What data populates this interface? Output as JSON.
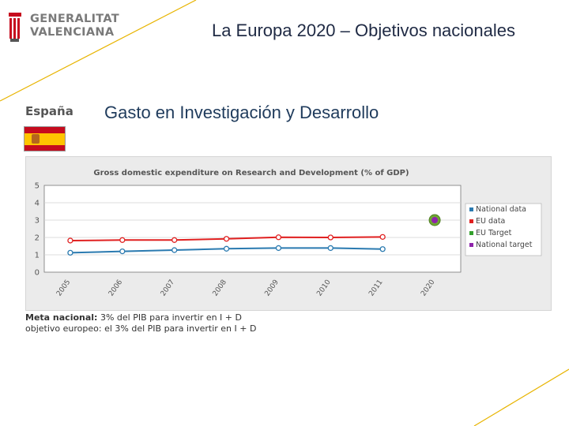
{
  "logo": {
    "line1": "GENERALITAT",
    "line2": "VALENCIANA"
  },
  "slide_title": "La Europa 2020 – Objetivos nacionales",
  "country": {
    "name": "España"
  },
  "subtitle": "Gasto en Investigación y Desarrollo",
  "colors": {
    "national": "#2a7ab0",
    "eu_data": "#e02020",
    "eu_target": "#33a02c",
    "national_target": "#8e24aa",
    "target_ring": "#6fa832",
    "accent_line": "#e8b400"
  },
  "chart_data": {
    "type": "line",
    "title": "Gross domestic expenditure on Research and Development (% of GDP)",
    "x": [
      "2005",
      "2006",
      "2007",
      "2008",
      "2009",
      "2010",
      "2011",
      "2020"
    ],
    "ylim": [
      0,
      5
    ],
    "yticks": [
      "0",
      "1",
      "2",
      "3",
      "4",
      "5"
    ],
    "grid": true,
    "legend_position": "right",
    "series": [
      {
        "name": "National data",
        "color_key": "national",
        "values": [
          1.12,
          1.2,
          1.27,
          1.35,
          1.39,
          1.39,
          1.33,
          null
        ]
      },
      {
        "name": "EU data",
        "color_key": "eu_data",
        "values": [
          1.82,
          1.85,
          1.85,
          1.92,
          2.01,
          2.0,
          2.03,
          null
        ]
      },
      {
        "name": "EU Target",
        "color_key": "eu_target",
        "values": [
          null,
          null,
          null,
          null,
          null,
          null,
          null,
          3
        ]
      },
      {
        "name": "National target",
        "color_key": "national_target",
        "values": [
          null,
          null,
          null,
          null,
          null,
          null,
          null,
          3
        ]
      }
    ]
  },
  "notes": {
    "line1_bold": "Meta nacional:",
    "line1_rest": " 3% del PIB para invertir en I + D",
    "line2": "objetivo europeo: el 3% del PIB para invertir en I + D"
  }
}
